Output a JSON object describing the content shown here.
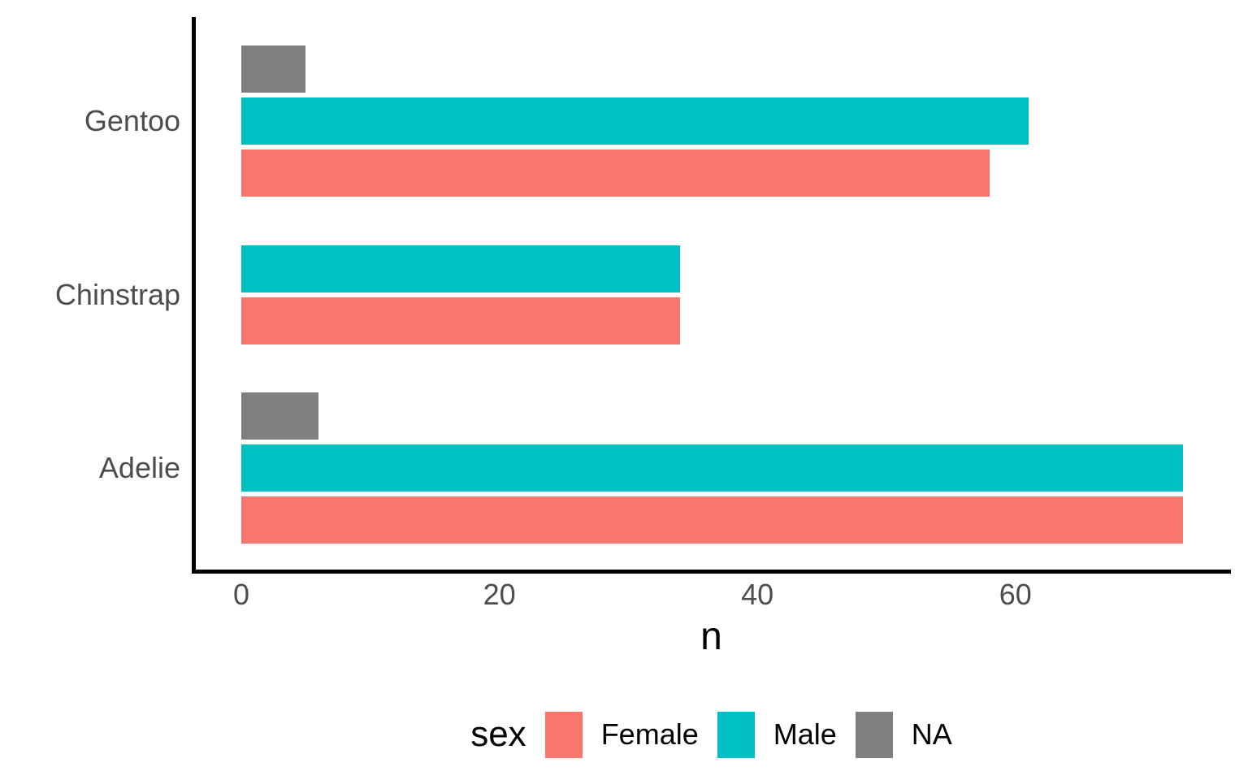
{
  "chart_data": {
    "type": "bar",
    "orientation": "horizontal",
    "title": "",
    "xlabel": "n",
    "ylabel": "",
    "categories": [
      "Gentoo",
      "Chinstrap",
      "Adelie"
    ],
    "series": [
      {
        "name": "Female",
        "color": "#F8766D",
        "values": [
          58,
          34,
          73
        ]
      },
      {
        "name": "Male",
        "color": "#00BFC4",
        "values": [
          61,
          34,
          73
        ]
      },
      {
        "name": "NA",
        "color": "#7F7F7F",
        "values": [
          5,
          null,
          6
        ]
      }
    ],
    "bar_order_top_to_bottom": [
      "NA",
      "Male",
      "Female"
    ],
    "x_ticks": [
      {
        "label": "0",
        "value": 0
      },
      {
        "label": "20",
        "value": 20
      },
      {
        "label": "40",
        "value": 40
      },
      {
        "label": "60",
        "value": 60
      }
    ],
    "xlim": [
      0,
      76.7
    ],
    "grid": false,
    "legend": {
      "title": "sex",
      "position": "bottom",
      "entries": [
        {
          "label": "Female",
          "color": "#F8766D"
        },
        {
          "label": "Male",
          "color": "#00BFC4"
        },
        {
          "label": "NA",
          "color": "#7F7F7F"
        }
      ]
    },
    "style": {
      "axis_line_color": "#000000",
      "axis_text_color": "#4D4D4D",
      "title_text_color": "#000000",
      "background": "#FFFFFF"
    }
  }
}
